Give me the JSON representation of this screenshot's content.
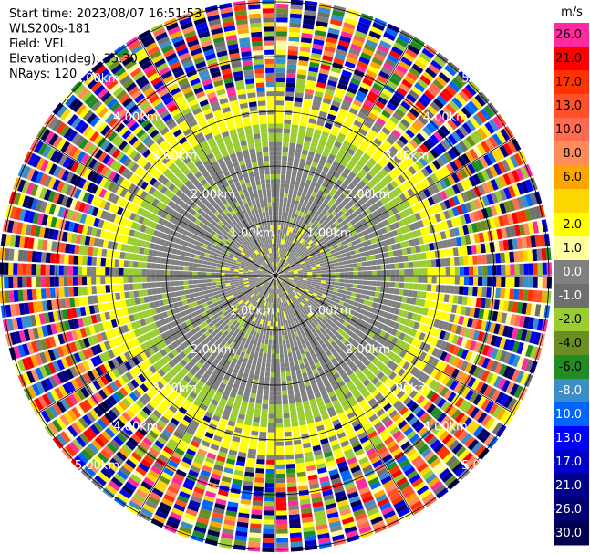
{
  "header": {
    "lines": [
      "Start time: 2023/08/07 16:51:53",
      "WLS200s-181",
      "Field: VEL",
      "Elevation(deg): 35.30",
      "NRays: 120"
    ]
  },
  "range_rings": {
    "labels": [
      "1.00km",
      "2.00km",
      "3.00km",
      "4.00km",
      "5.00km"
    ]
  },
  "colorbar": {
    "title": "m/s",
    "labels": [
      "26.0",
      "21.0",
      "17.0",
      "13.0",
      "10.0",
      "8.0",
      "6.0",
      null,
      "2.0",
      "1.0",
      "0.0",
      "-1.0",
      "-2.0",
      "-4.0",
      "-6.0",
      "-8.0",
      "-10.0",
      "-13.0",
      "-17.0",
      "-21.0",
      "-26.0",
      "-30.0"
    ],
    "colors": [
      "#ff2aa0",
      "#ff0000",
      "#ff3300",
      "#ff5028",
      "#ff6a50",
      "#ff8c5a",
      "#ffa500",
      "#ffd700",
      "#ffff00",
      "#ffffa0",
      "#808080",
      "#6e7070",
      "#9acd32",
      "#6b8e23",
      "#228b22",
      "#3c8ec8",
      "#0064ff",
      "#0000ff",
      "#0000cd",
      "#00008b",
      "#000070",
      "#000050"
    ]
  }
}
